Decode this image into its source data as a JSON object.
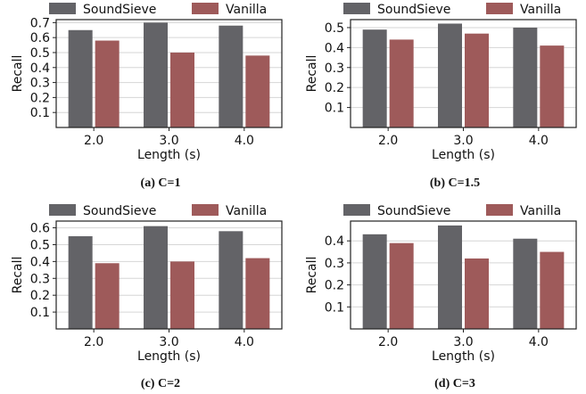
{
  "legend": {
    "series": [
      {
        "name": "SoundSieve",
        "color": "#636367"
      },
      {
        "name": "Vanilla",
        "color": "#9e5a5a"
      }
    ]
  },
  "panels": [
    {
      "tag": "(a)",
      "caption": "C=1"
    },
    {
      "tag": "(b)",
      "caption": "C=1.5"
    },
    {
      "tag": "(c)",
      "caption": "C=2"
    },
    {
      "tag": "(d)",
      "caption": "C=3"
    }
  ],
  "chart_data": [
    {
      "type": "bar",
      "title": "",
      "xlabel": "Length (s)",
      "ylabel": "Recall",
      "categories": [
        "2.0",
        "3.0",
        "4.0"
      ],
      "ylim": [
        0,
        0.72
      ],
      "yticks": [
        "0.1",
        "0.2",
        "0.3",
        "0.4",
        "0.5",
        "0.6",
        "0.7"
      ],
      "grid": true,
      "legend_position": "top",
      "series": [
        {
          "name": "SoundSieve",
          "values": [
            0.65,
            0.7,
            0.68
          ]
        },
        {
          "name": "Vanilla",
          "values": [
            0.58,
            0.5,
            0.48
          ]
        }
      ]
    },
    {
      "type": "bar",
      "title": "",
      "xlabel": "Length (s)",
      "ylabel": "Recall",
      "categories": [
        "2.0",
        "3.0",
        "4.0"
      ],
      "ylim": [
        0,
        0.54
      ],
      "yticks": [
        "0.1",
        "0.2",
        "0.3",
        "0.4",
        "0.5"
      ],
      "grid": true,
      "legend_position": "top",
      "series": [
        {
          "name": "SoundSieve",
          "values": [
            0.49,
            0.52,
            0.5
          ]
        },
        {
          "name": "Vanilla",
          "values": [
            0.44,
            0.47,
            0.41
          ]
        }
      ]
    },
    {
      "type": "bar",
      "title": "",
      "xlabel": "Length (s)",
      "ylabel": "Recall",
      "categories": [
        "2.0",
        "3.0",
        "4.0"
      ],
      "ylim": [
        0,
        0.64
      ],
      "yticks": [
        "0.1",
        "0.2",
        "0.3",
        "0.4",
        "0.5",
        "0.6"
      ],
      "grid": true,
      "legend_position": "top",
      "series": [
        {
          "name": "SoundSieve",
          "values": [
            0.55,
            0.61,
            0.58
          ]
        },
        {
          "name": "Vanilla",
          "values": [
            0.39,
            0.4,
            0.42
          ]
        }
      ]
    },
    {
      "type": "bar",
      "title": "",
      "xlabel": "Length (s)",
      "ylabel": "Recall",
      "categories": [
        "2.0",
        "3.0",
        "4.0"
      ],
      "ylim": [
        0,
        0.49
      ],
      "yticks": [
        "0.1",
        "0.2",
        "0.3",
        "0.4"
      ],
      "grid": true,
      "legend_position": "top",
      "series": [
        {
          "name": "SoundSieve",
          "values": [
            0.43,
            0.47,
            0.41
          ]
        },
        {
          "name": "Vanilla",
          "values": [
            0.39,
            0.32,
            0.35
          ]
        }
      ]
    }
  ]
}
